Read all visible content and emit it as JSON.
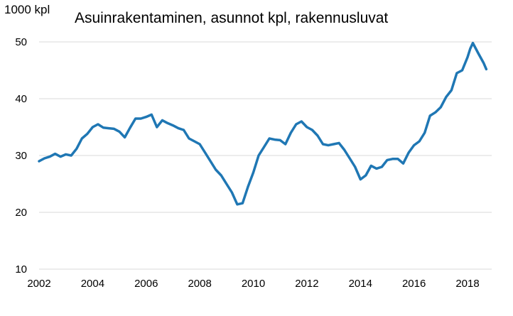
{
  "chart_data": {
    "type": "line",
    "title": "Asuinrakentaminen, asunnot kpl, rakennusluvat",
    "ylabel": "1000 kpl",
    "xlabel": "",
    "ylim": [
      10,
      52
    ],
    "xlim": [
      2002,
      2019
    ],
    "y_ticks": [
      10,
      20,
      30,
      40,
      50
    ],
    "x_ticks": [
      2002,
      2004,
      2006,
      2008,
      2010,
      2012,
      2014,
      2016,
      2018
    ],
    "grid": "horizontal",
    "line_color": "#1f77b4",
    "series": [
      {
        "x": [
          2002.0,
          2002.2,
          2002.4,
          2002.6,
          2002.8,
          2003.0,
          2003.2,
          2003.4,
          2003.6,
          2003.8,
          2004.0,
          2004.2,
          2004.4,
          2004.6,
          2004.8,
          2005.0,
          2005.2,
          2005.4,
          2005.6,
          2005.8,
          2006.0,
          2006.2,
          2006.4,
          2006.6,
          2006.8,
          2007.0,
          2007.2,
          2007.4,
          2007.6,
          2007.8,
          2008.0,
          2008.2,
          2008.4,
          2008.6,
          2008.8,
          2009.0,
          2009.2,
          2009.4,
          2009.6,
          2009.8,
          2010.0,
          2010.2,
          2010.4,
          2010.6,
          2010.8,
          2011.0,
          2011.2,
          2011.4,
          2011.6,
          2011.8,
          2012.0,
          2012.2,
          2012.4,
          2012.6,
          2012.8,
          2013.0,
          2013.2,
          2013.4,
          2013.6,
          2013.8,
          2014.0,
          2014.2,
          2014.4,
          2014.6,
          2014.8,
          2015.0,
          2015.2,
          2015.4,
          2015.6,
          2015.8,
          2016.0,
          2016.2,
          2016.4,
          2016.6,
          2016.8,
          2017.0,
          2017.2,
          2017.4,
          2017.6,
          2017.8,
          2018.0,
          2018.1,
          2018.2,
          2018.4,
          2018.6,
          2018.7
        ],
        "values": [
          29.0,
          29.5,
          29.8,
          30.3,
          29.8,
          30.2,
          30.0,
          31.2,
          33.0,
          33.8,
          35.0,
          35.5,
          34.9,
          34.8,
          34.7,
          34.2,
          33.2,
          34.9,
          36.5,
          36.5,
          36.8,
          37.2,
          35.0,
          36.2,
          35.7,
          35.3,
          34.8,
          34.5,
          33.0,
          32.5,
          32.0,
          30.5,
          29.0,
          27.5,
          26.5,
          25.0,
          23.5,
          21.4,
          21.6,
          24.5,
          27.0,
          30.0,
          31.5,
          33.0,
          32.8,
          32.7,
          32.0,
          34.0,
          35.5,
          36.0,
          35.0,
          34.5,
          33.5,
          32.0,
          31.8,
          32.0,
          32.2,
          31.0,
          29.5,
          28.0,
          25.8,
          26.5,
          28.2,
          27.7,
          28.0,
          29.2,
          29.4,
          29.4,
          28.6,
          30.5,
          31.8,
          32.5,
          34.0,
          37.0,
          37.6,
          38.5,
          40.3,
          41.5,
          44.5,
          45.0,
          47.3,
          48.8,
          49.8,
          48.0,
          46.3,
          45.2
        ]
      }
    ]
  }
}
